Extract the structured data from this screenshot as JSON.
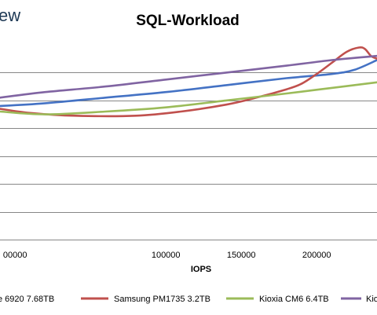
{
  "logo": {
    "text": "ew"
  },
  "chart_data": {
    "type": "line",
    "title": "SQL-Workload",
    "xlabel": "IOPS",
    "ylabel": "",
    "xlim": [
      -10000,
      240000
    ],
    "ylim": [
      0,
      7
    ],
    "x_ticks": [
      0,
      100000,
      150000,
      200000
    ],
    "x_tick_labels": [
      "00000",
      "100000",
      "150000",
      "200000"
    ],
    "y_gridlines": [
      1,
      2,
      3,
      4,
      5,
      6
    ],
    "grid": true,
    "legend_position": "bottom",
    "series": [
      {
        "name": "e 6920 7.68TB",
        "color": "#4472c4",
        "x": [
          -10000,
          20000,
          60000,
          100000,
          140000,
          180000,
          210000,
          225000,
          240000
        ],
        "y": [
          4.8,
          4.9,
          5.1,
          5.3,
          5.55,
          5.8,
          5.95,
          6.1,
          6.45
        ]
      },
      {
        "name": "Samsung PM1735 3.2TB",
        "color": "#c0504d",
        "x": [
          -10000,
          10000,
          40000,
          80000,
          110000,
          140000,
          160000,
          180000,
          190000,
          200000,
          210000,
          220000,
          228000,
          232000,
          236000,
          240000
        ],
        "y": [
          4.7,
          4.55,
          4.45,
          4.45,
          4.6,
          4.85,
          5.1,
          5.4,
          5.6,
          5.95,
          6.35,
          6.75,
          6.9,
          6.85,
          6.6,
          6.5
        ]
      },
      {
        "name": "Kioxia CM6 6.4TB",
        "color": "#9bbb59",
        "x": [
          -10000,
          20000,
          60000,
          100000,
          140000,
          180000,
          210000,
          240000
        ],
        "y": [
          4.6,
          4.5,
          4.6,
          4.75,
          5.0,
          5.25,
          5.45,
          5.65
        ]
      },
      {
        "name": "Kio",
        "color": "#8064a2",
        "x": [
          -10000,
          20000,
          60000,
          100000,
          140000,
          180000,
          210000,
          240000
        ],
        "y": [
          5.1,
          5.3,
          5.5,
          5.75,
          6.0,
          6.25,
          6.45,
          6.6
        ]
      }
    ]
  }
}
